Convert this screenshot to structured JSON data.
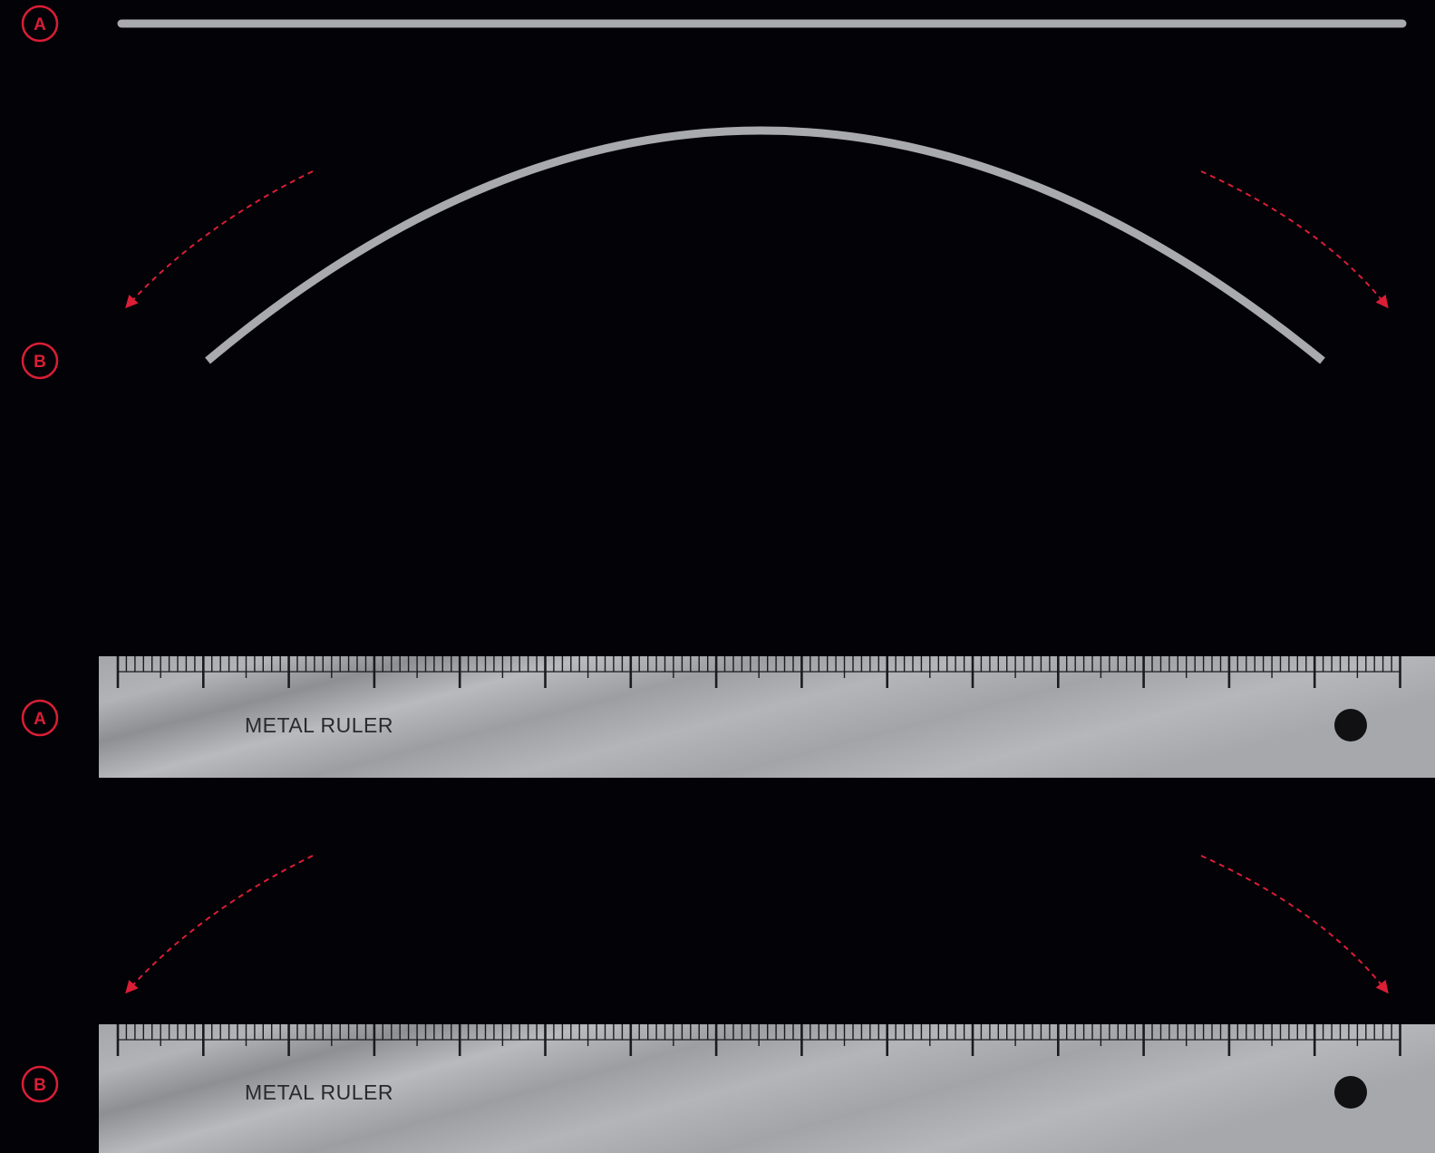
{
  "labels": {
    "state_a": "A",
    "state_b": "B"
  },
  "ruler": {
    "text": "METAL RULER"
  },
  "colors": {
    "background": "#030207",
    "accent_red": "#d91e36",
    "wire_gray": "#a9aaae",
    "tick_black": "#1b1b1e",
    "hole_black": "#111113"
  },
  "icons": {
    "badge": "circled-letter-icon",
    "arrow": "dashed-curved-arrow-icon",
    "hole": "ruler-hole-icon"
  }
}
